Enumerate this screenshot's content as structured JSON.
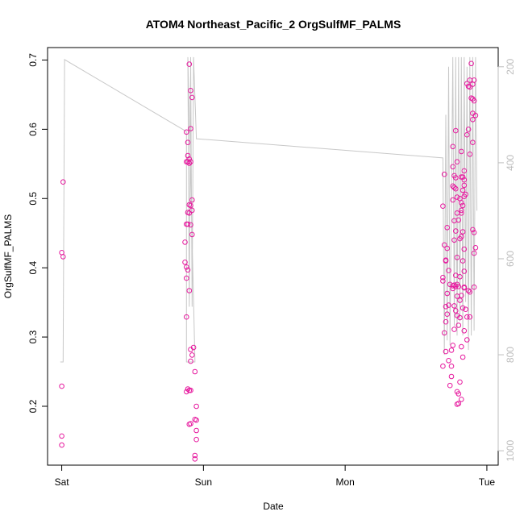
{
  "chart_data": {
    "type": "scatter",
    "title": "ATOM4 Northeast_Pacific_2 OrgSulfMF_PALMS",
    "xlabel": "Date",
    "ylabel": "OrgSulfMF_PALMS",
    "x_ticks": [
      {
        "label": "Sat",
        "day": 0
      },
      {
        "label": "Sun",
        "day": 1
      },
      {
        "label": "Mon",
        "day": 2
      },
      {
        "label": "Tue",
        "day": 3
      }
    ],
    "xlim_days": [
      -0.1,
      3.08
    ],
    "ylim": [
      0.115,
      0.718
    ],
    "y_ticks": [
      0.2,
      0.3,
      0.4,
      0.5,
      0.6,
      0.7
    ],
    "y2_ticks": [
      200,
      400,
      600,
      800,
      1000
    ],
    "y2lim": [
      1030,
      160
    ],
    "grid": false,
    "legend": "none",
    "colors": {
      "points": "#e6199e",
      "altitude_line": "#c8c8c8",
      "axis": "#000000",
      "right_axis": "#bdbdbd"
    },
    "series": [
      {
        "values": [
          [
            0.01,
            0.524
          ],
          [
            0.0,
            0.422
          ],
          [
            0.01,
            0.416
          ],
          [
            0.0,
            0.229
          ],
          [
            0.0,
            0.157
          ],
          [
            0.0,
            0.144
          ],
          [
            0.9,
            0.694
          ],
          [
            0.91,
            0.656
          ],
          [
            0.92,
            0.646
          ],
          [
            0.91,
            0.601
          ],
          [
            0.88,
            0.596
          ],
          [
            0.89,
            0.581
          ],
          [
            0.89,
            0.562
          ],
          [
            0.9,
            0.557
          ],
          [
            0.88,
            0.553
          ],
          [
            0.89,
            0.553
          ],
          [
            0.9,
            0.551
          ],
          [
            0.91,
            0.553
          ],
          [
            0.92,
            0.498
          ],
          [
            0.9,
            0.491
          ],
          [
            0.91,
            0.49
          ],
          [
            0.89,
            0.48
          ],
          [
            0.9,
            0.479
          ],
          [
            0.92,
            0.483
          ],
          [
            0.88,
            0.463
          ],
          [
            0.89,
            0.463
          ],
          [
            0.91,
            0.462
          ],
          [
            0.92,
            0.448
          ],
          [
            0.87,
            0.437
          ],
          [
            0.87,
            0.408
          ],
          [
            0.88,
            0.401
          ],
          [
            0.89,
            0.397
          ],
          [
            0.88,
            0.385
          ],
          [
            0.9,
            0.367
          ],
          [
            0.88,
            0.329
          ],
          [
            0.93,
            0.285
          ],
          [
            0.91,
            0.282
          ],
          [
            0.92,
            0.274
          ],
          [
            0.91,
            0.265
          ],
          [
            0.94,
            0.25
          ],
          [
            0.89,
            0.225
          ],
          [
            0.88,
            0.221
          ],
          [
            0.9,
            0.223
          ],
          [
            0.91,
            0.223
          ],
          [
            0.95,
            0.2
          ],
          [
            0.94,
            0.181
          ],
          [
            0.95,
            0.18
          ],
          [
            0.91,
            0.175
          ],
          [
            0.9,
            0.174
          ],
          [
            0.95,
            0.165
          ],
          [
            0.95,
            0.152
          ],
          [
            0.94,
            0.129
          ],
          [
            0.94,
            0.124
          ],
          [
            2.7,
            0.535
          ],
          [
            2.69,
            0.489
          ],
          [
            2.72,
            0.458
          ],
          [
            2.7,
            0.433
          ],
          [
            2.72,
            0.428
          ],
          [
            2.71,
            0.411
          ],
          [
            2.71,
            0.41
          ],
          [
            2.73,
            0.396
          ],
          [
            2.69,
            0.386
          ],
          [
            2.69,
            0.381
          ],
          [
            2.74,
            0.376
          ],
          [
            2.72,
            0.363
          ],
          [
            2.71,
            0.344
          ],
          [
            2.72,
            0.333
          ],
          [
            2.73,
            0.346
          ],
          [
            2.71,
            0.322
          ],
          [
            2.7,
            0.306
          ],
          [
            2.71,
            0.279
          ],
          [
            2.73,
            0.266
          ],
          [
            2.69,
            0.258
          ],
          [
            2.75,
            0.258
          ],
          [
            2.75,
            0.243
          ],
          [
            2.74,
            0.23
          ],
          [
            2.78,
            0.598
          ],
          [
            2.76,
            0.575
          ],
          [
            2.79,
            0.553
          ],
          [
            2.76,
            0.546
          ],
          [
            2.77,
            0.533
          ],
          [
            2.78,
            0.53
          ],
          [
            2.76,
            0.518
          ],
          [
            2.77,
            0.516
          ],
          [
            2.78,
            0.514
          ],
          [
            2.79,
            0.502
          ],
          [
            2.76,
            0.498
          ],
          [
            2.79,
            0.479
          ],
          [
            2.77,
            0.468
          ],
          [
            2.78,
            0.453
          ],
          [
            2.77,
            0.44
          ],
          [
            2.8,
            0.469
          ],
          [
            2.79,
            0.415
          ],
          [
            2.78,
            0.389
          ],
          [
            2.78,
            0.373
          ],
          [
            2.79,
            0.376
          ],
          [
            2.8,
            0.373
          ],
          [
            2.76,
            0.374
          ],
          [
            2.76,
            0.37
          ],
          [
            2.77,
            0.375
          ],
          [
            2.79,
            0.359
          ],
          [
            2.77,
            0.345
          ],
          [
            2.78,
            0.338
          ],
          [
            2.79,
            0.331
          ],
          [
            2.8,
            0.317
          ],
          [
            2.77,
            0.311
          ],
          [
            2.76,
            0.288
          ],
          [
            2.75,
            0.281
          ],
          [
            2.79,
            0.221
          ],
          [
            2.8,
            0.218
          ],
          [
            2.8,
            0.204
          ],
          [
            2.79,
            0.203
          ],
          [
            2.82,
            0.568
          ],
          [
            2.84,
            0.54
          ],
          [
            2.83,
            0.531
          ],
          [
            2.82,
            0.531
          ],
          [
            2.84,
            0.527
          ],
          [
            2.84,
            0.519
          ],
          [
            2.83,
            0.512
          ],
          [
            2.81,
            0.5
          ],
          [
            2.82,
            0.494
          ],
          [
            2.83,
            0.49
          ],
          [
            2.84,
            0.503
          ],
          [
            2.82,
            0.483
          ],
          [
            2.82,
            0.479
          ],
          [
            2.83,
            0.452
          ],
          [
            2.82,
            0.445
          ],
          [
            2.81,
            0.442
          ],
          [
            2.84,
            0.427
          ],
          [
            2.83,
            0.41
          ],
          [
            2.84,
            0.395
          ],
          [
            2.81,
            0.387
          ],
          [
            2.84,
            0.372
          ],
          [
            2.82,
            0.36
          ],
          [
            2.81,
            0.353
          ],
          [
            2.83,
            0.342
          ],
          [
            2.81,
            0.328
          ],
          [
            2.84,
            0.309
          ],
          [
            2.82,
            0.286
          ],
          [
            2.83,
            0.271
          ],
          [
            2.81,
            0.235
          ],
          [
            2.82,
            0.21
          ],
          [
            2.84,
            0.371
          ],
          [
            2.85,
            0.34
          ],
          [
            2.86,
            0.329
          ],
          [
            2.89,
            0.695
          ],
          [
            2.86,
            0.666
          ],
          [
            2.88,
            0.671
          ],
          [
            2.91,
            0.671
          ],
          [
            2.9,
            0.665
          ],
          [
            2.88,
            0.661
          ],
          [
            2.87,
            0.662
          ],
          [
            2.89,
            0.645
          ],
          [
            2.9,
            0.644
          ],
          [
            2.91,
            0.641
          ],
          [
            2.9,
            0.623
          ],
          [
            2.92,
            0.62
          ],
          [
            2.9,
            0.614
          ],
          [
            2.87,
            0.6
          ],
          [
            2.86,
            0.592
          ],
          [
            2.9,
            0.581
          ],
          [
            2.88,
            0.564
          ],
          [
            2.9,
            0.455
          ],
          [
            2.91,
            0.451
          ],
          [
            2.92,
            0.429
          ],
          [
            2.91,
            0.421
          ],
          [
            2.91,
            0.372
          ],
          [
            2.87,
            0.367
          ],
          [
            2.88,
            0.365
          ],
          [
            2.88,
            0.329
          ],
          [
            2.86,
            0.296
          ],
          [
            2.85,
            0.506
          ]
        ]
      }
    ],
    "altitude_path": [
      [
        -0.01,
        815
      ],
      [
        0.0,
        815
      ],
      [
        0.01,
        815
      ],
      [
        0.02,
        185
      ],
      [
        0.88,
        335
      ],
      [
        0.88,
        815
      ],
      [
        0.94,
        815
      ],
      [
        0.94,
        810
      ],
      [
        0.89,
        180
      ],
      [
        0.9,
        700
      ],
      [
        0.91,
        180
      ],
      [
        0.92,
        700
      ],
      [
        0.93,
        180
      ],
      [
        0.95,
        350
      ],
      [
        2.69,
        390
      ],
      [
        2.7,
        800
      ],
      [
        2.71,
        300
      ],
      [
        2.72,
        770
      ],
      [
        2.73,
        200
      ],
      [
        2.74,
        780
      ],
      [
        2.76,
        180
      ],
      [
        2.77,
        740
      ],
      [
        2.78,
        180
      ],
      [
        2.79,
        760
      ],
      [
        2.8,
        180
      ],
      [
        2.81,
        730
      ],
      [
        2.82,
        180
      ],
      [
        2.83,
        760
      ],
      [
        2.84,
        180
      ],
      [
        2.85,
        690
      ],
      [
        2.86,
        200
      ],
      [
        2.87,
        790
      ],
      [
        2.88,
        180
      ],
      [
        2.89,
        760
      ],
      [
        2.9,
        180
      ],
      [
        2.91,
        750
      ],
      [
        2.92,
        180
      ],
      [
        2.93,
        500
      ]
    ]
  }
}
